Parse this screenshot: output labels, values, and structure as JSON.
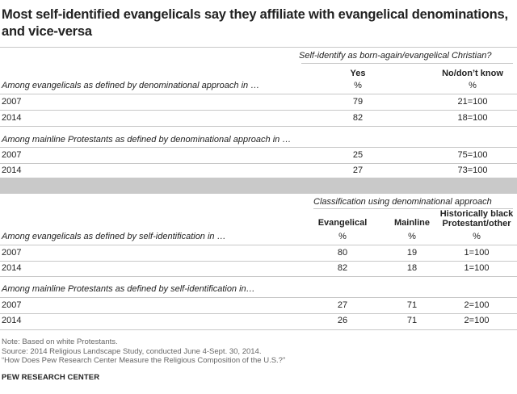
{
  "title": "Most self-identified evangelicals say they affiliate with evangelical denominations, and vice-versa",
  "section1": {
    "header": "Self-identify as born-again/evangelical Christian?",
    "columns": [
      {
        "label": "Yes",
        "unit": "%"
      },
      {
        "label": "No/don’t know",
        "unit": "%"
      }
    ],
    "groups": [
      {
        "label": "Among evangelicals as defined by denominational approach in …",
        "rows": [
          {
            "year": "2007",
            "values": [
              "79",
              "21=100"
            ]
          },
          {
            "year": "2014",
            "values": [
              "82",
              "18=100"
            ]
          }
        ]
      },
      {
        "label": "Among mainline Protestants as defined by denominational approach in …",
        "rows": [
          {
            "year": "2007",
            "values": [
              "25",
              "75=100"
            ]
          },
          {
            "year": "2014",
            "values": [
              "27",
              "73=100"
            ]
          }
        ]
      }
    ]
  },
  "section2": {
    "header": "Classification using denominational approach",
    "columns": [
      {
        "label": "Evangelical",
        "unit": "%"
      },
      {
        "label": "Mainline",
        "unit": "%"
      },
      {
        "label_line1": "Historically black",
        "label_line2": "Protestant/other",
        "unit": "%"
      }
    ],
    "groups": [
      {
        "label": "Among evangelicals as defined by self-identification in …",
        "rows": [
          {
            "year": "2007",
            "values": [
              "80",
              "19",
              "1=100"
            ]
          },
          {
            "year": "2014",
            "values": [
              "82",
              "18",
              "1=100"
            ]
          }
        ]
      },
      {
        "label": "Among mainline Protestants as defined by self-identification in…",
        "rows": [
          {
            "year": "2007",
            "values": [
              "27",
              "71",
              "2=100"
            ]
          },
          {
            "year": "2014",
            "values": [
              "26",
              "71",
              "2=100"
            ]
          }
        ]
      }
    ]
  },
  "notes": {
    "note": "Note: Based on white Protestants.",
    "source": "Source: 2014 Religious Landscape Study, conducted June 4-Sept. 30, 2014.",
    "link": "“How Does Pew Research Center Measure the Religious Composition of the U.S.?”",
    "org": "PEW RESEARCH CENTER"
  }
}
